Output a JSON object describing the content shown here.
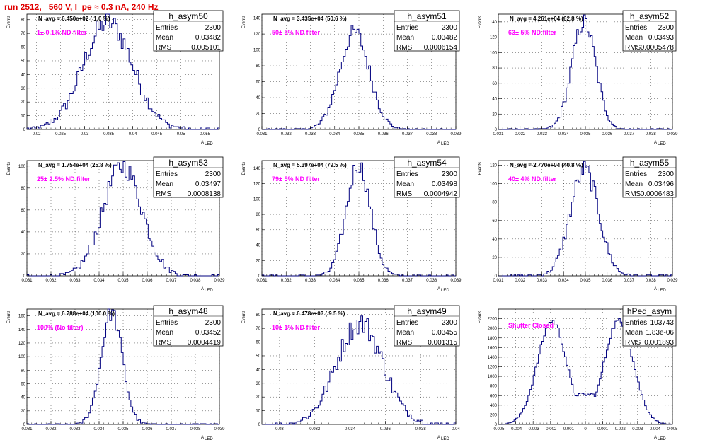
{
  "title": "run 2512,   560 V, I_pe ≈ 0.3 nA, 240 Hz",
  "chart_data": [
    {
      "type": "bar",
      "name": "h_asym50",
      "xlabel": "A",
      "xlabel_sub": "LED",
      "ylabel": "Events",
      "navg": "N_avg = 6.450e+02 ( 1.0 %)",
      "filter": "1± 0.1% ND filter",
      "stats": {
        "Entries": "2300",
        "Mean": "0.03482",
        "RMS": "0.005101"
      },
      "xlim": [
        0.018,
        0.058
      ],
      "ylim": [
        0,
        84
      ],
      "xticks": [
        0.02,
        0.025,
        0.03,
        0.035,
        0.04,
        0.045,
        0.05,
        0.055
      ],
      "xticklabels": [
        "0.02",
        "0.025",
        "0.03",
        "0.035",
        "0.04",
        "0.045",
        "0.05",
        "0.055"
      ],
      "yticks": [
        0,
        10,
        20,
        30,
        40,
        50,
        60,
        70,
        80
      ],
      "yticklabels": [
        "0",
        "10",
        "20",
        "30",
        "40",
        "50",
        "60",
        "70",
        "80"
      ],
      "mean": 0.03482,
      "rms": 0.005101,
      "peak": 78,
      "entries": 2300,
      "bins": 100
    },
    {
      "type": "bar",
      "name": "h_asym51",
      "xlabel": "A",
      "xlabel_sub": "LED",
      "ylabel": "Events",
      "navg": "N_avg = 3.435e+04 (50.6 %)",
      "filter": "50± 5% ND filter",
      "stats": {
        "Entries": "2300",
        "Mean": "0.03482",
        "RMS": "0.0006154"
      },
      "xlim": [
        0.031,
        0.039
      ],
      "ylim": [
        0,
        145
      ],
      "xticks": [
        0.031,
        0.032,
        0.033,
        0.034,
        0.035,
        0.036,
        0.037,
        0.038,
        0.039
      ],
      "xticklabels": [
        "0.031",
        "0.032",
        "0.033",
        "0.034",
        "0.035",
        "0.036",
        "0.037",
        "0.038",
        "0.039"
      ],
      "yticks": [
        0,
        20,
        40,
        60,
        80,
        100,
        120,
        140
      ],
      "yticklabels": [
        "0",
        "20",
        "40",
        "60",
        "80",
        "100",
        "120",
        "140"
      ],
      "mean": 0.03482,
      "rms": 0.0006154,
      "peak": 122,
      "entries": 2300,
      "bins": 100
    },
    {
      "type": "bar",
      "name": "h_asym52",
      "xlabel": "A",
      "xlabel_sub": "LED",
      "ylabel": "Events",
      "navg": "N_avg = 4.261e+04 (62.8 %)",
      "filter": "63± 5% ND filter",
      "stats": {
        "Entries": "2300",
        "Mean": "0.03493",
        "RMS": "0.0005478"
      },
      "xlim": [
        0.031,
        0.039
      ],
      "ylim": [
        0,
        150
      ],
      "xticks": [
        0.031,
        0.032,
        0.033,
        0.034,
        0.035,
        0.036,
        0.037,
        0.038,
        0.039
      ],
      "xticklabels": [
        "0.031",
        "0.032",
        "0.033",
        "0.034",
        "0.035",
        "0.036",
        "0.037",
        "0.038",
        "0.039"
      ],
      "yticks": [
        0,
        20,
        40,
        60,
        80,
        100,
        120,
        140
      ],
      "yticklabels": [
        "0",
        "20",
        "40",
        "60",
        "80",
        "100",
        "120",
        "140"
      ],
      "mean": 0.03493,
      "rms": 0.0005478,
      "peak": 140,
      "entries": 2300,
      "bins": 100
    },
    {
      "type": "bar",
      "name": "h_asym53",
      "xlabel": "A",
      "xlabel_sub": "LED",
      "ylabel": "Events",
      "navg": "N_avg = 1.754e+04 (25.8 %)",
      "filter": "25± 2.5% ND filter",
      "stats": {
        "Entries": "2300",
        "Mean": "0.03497",
        "RMS": "0.0008138"
      },
      "xlim": [
        0.031,
        0.039
      ],
      "ylim": [
        0,
        105
      ],
      "xticks": [
        0.031,
        0.032,
        0.033,
        0.034,
        0.035,
        0.036,
        0.037,
        0.038,
        0.039
      ],
      "xticklabels": [
        "0.031",
        "0.032",
        "0.033",
        "0.034",
        "0.035",
        "0.036",
        "0.037",
        "0.038",
        "0.039"
      ],
      "yticks": [
        0,
        20,
        40,
        60,
        80,
        100
      ],
      "yticklabels": [
        "0",
        "20",
        "40",
        "60",
        "80",
        "100"
      ],
      "mean": 0.03497,
      "rms": 0.0008138,
      "peak": 100,
      "entries": 2300,
      "bins": 100
    },
    {
      "type": "bar",
      "name": "h_asym54",
      "xlabel": "A",
      "xlabel_sub": "LED",
      "ylabel": "Events",
      "navg": "N_avg = 5.397e+04 (79.5 %)",
      "filter": "79± 5% ND filter",
      "stats": {
        "Entries": "2300",
        "Mean": "0.03498",
        "RMS": "0.0004942"
      },
      "xlim": [
        0.031,
        0.039
      ],
      "ylim": [
        0,
        150
      ],
      "xticks": [
        0.031,
        0.032,
        0.033,
        0.034,
        0.035,
        0.036,
        0.037,
        0.038,
        0.039
      ],
      "xticklabels": [
        "0.031",
        "0.032",
        "0.033",
        "0.034",
        "0.035",
        "0.036",
        "0.037",
        "0.038",
        "0.039"
      ],
      "yticks": [
        0,
        20,
        40,
        60,
        80,
        100,
        120,
        140
      ],
      "yticklabels": [
        "0",
        "20",
        "40",
        "60",
        "80",
        "100",
        "120",
        "140"
      ],
      "mean": 0.03498,
      "rms": 0.0004942,
      "peak": 145,
      "entries": 2300,
      "bins": 100
    },
    {
      "type": "bar",
      "name": "h_asym55",
      "xlabel": "A",
      "xlabel_sub": "LED",
      "ylabel": "Events",
      "navg": "N_avg = 2.770e+04 (40.8 %)",
      "filter": "40± 4% ND filter",
      "stats": {
        "Entries": "2300",
        "Mean": "0.03496",
        "RMS": "0.0006483"
      },
      "xlim": [
        0.031,
        0.039
      ],
      "ylim": [
        0,
        125
      ],
      "xticks": [
        0.031,
        0.032,
        0.033,
        0.034,
        0.035,
        0.036,
        0.037,
        0.038,
        0.039
      ],
      "xticklabels": [
        "0.031",
        "0.032",
        "0.033",
        "0.034",
        "0.035",
        "0.036",
        "0.037",
        "0.038",
        "0.039"
      ],
      "yticks": [
        0,
        20,
        40,
        60,
        80,
        100,
        120
      ],
      "yticklabels": [
        "0",
        "20",
        "40",
        "60",
        "80",
        "100",
        "120"
      ],
      "mean": 0.03496,
      "rms": 0.0006483,
      "peak": 115,
      "entries": 2300,
      "bins": 100
    },
    {
      "type": "bar",
      "name": "h_asym48",
      "xlabel": "A",
      "xlabel_sub": "LED",
      "ylabel": "Events",
      "navg": "N_avg = 6.788e+04 (100.0 %)",
      "filter": "100% (No filter)",
      "stats": {
        "Entries": "2300",
        "Mean": "0.03452",
        "RMS": "0.0004419"
      },
      "xlim": [
        0.031,
        0.039
      ],
      "ylim": [
        0,
        170
      ],
      "xticks": [
        0.031,
        0.032,
        0.033,
        0.034,
        0.035,
        0.036,
        0.037,
        0.038,
        0.039
      ],
      "xticklabels": [
        "0.031",
        "0.032",
        "0.033",
        "0.034",
        "0.035",
        "0.036",
        "0.037",
        "0.038",
        "0.039"
      ],
      "yticks": [
        0,
        20,
        40,
        60,
        80,
        100,
        120,
        140,
        160
      ],
      "yticklabels": [
        "0",
        "20",
        "40",
        "60",
        "80",
        "100",
        "120",
        "140",
        "160"
      ],
      "mean": 0.03452,
      "rms": 0.0004419,
      "peak": 165,
      "entries": 2300,
      "bins": 100
    },
    {
      "type": "bar",
      "name": "h_asym49",
      "xlabel": "A",
      "xlabel_sub": "LED",
      "ylabel": "Events",
      "navg": "N_avg = 6.478e+03 ( 9.5 %)",
      "filter": "10± 1% ND filter",
      "stats": {
        "Entries": "2300",
        "Mean": "0.03455",
        "RMS": "0.001315"
      },
      "xlim": [
        0.029,
        0.04
      ],
      "ylim": [
        0,
        84
      ],
      "xticks": [
        0.03,
        0.032,
        0.034,
        0.036,
        0.038,
        0.04
      ],
      "xticklabels": [
        "0.03",
        "0.032",
        "0.034",
        "0.036",
        "0.038",
        "0.04"
      ],
      "yticks": [
        0,
        10,
        20,
        30,
        40,
        50,
        60,
        70,
        80
      ],
      "yticklabels": [
        "0",
        "10",
        "20",
        "30",
        "40",
        "50",
        "60",
        "70",
        "80"
      ],
      "mean": 0.03455,
      "rms": 0.001315,
      "peak": 74,
      "entries": 2300,
      "bins": 100
    },
    {
      "type": "bar",
      "name": "hPed_asym",
      "xlabel": "A",
      "xlabel_sub": "LED",
      "ylabel": "Events",
      "navg": "",
      "filter": "Shutter Closed",
      "stats": {
        "Entries": "103743",
        "Mean": "1.83e-06",
        "RMS": "0.001893"
      },
      "xlim": [
        -0.005,
        0.005
      ],
      "ylim": [
        0,
        2400
      ],
      "xticks": [
        -0.005,
        -0.004,
        -0.003,
        -0.002,
        -0.001,
        0,
        0.001,
        0.002,
        0.003,
        0.004,
        0.005
      ],
      "xticklabels": [
        "-0.005",
        "-0.004",
        "-0.003",
        "-0.002",
        "-0.001",
        "0",
        "0.001",
        "0.002",
        "0.003",
        "0.004",
        "0.005"
      ],
      "yticks": [
        0,
        200,
        400,
        600,
        800,
        1000,
        1200,
        1400,
        1600,
        1800,
        2000,
        2200
      ],
      "yticklabels": [
        "0",
        "200",
        "400",
        "600",
        "800",
        "1000",
        "1200",
        "1400",
        "1600",
        "1800",
        "2000",
        "2200"
      ],
      "bimodal": {
        "centers": [
          -0.0019,
          0.0019
        ],
        "sigma": 0.00085,
        "peak": 2150,
        "valley": 620
      },
      "entries": 103743,
      "bins": 100
    }
  ]
}
